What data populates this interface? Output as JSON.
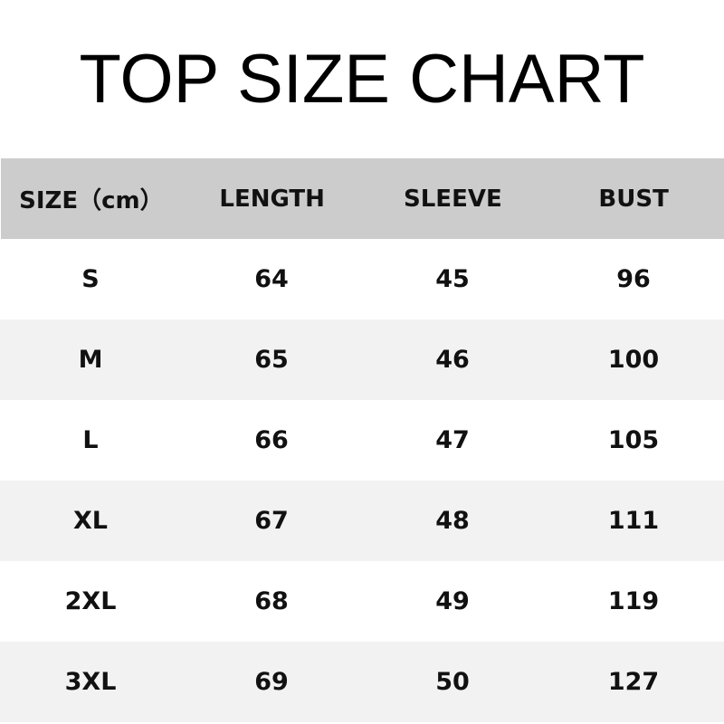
{
  "title": "TOP SIZE CHART",
  "table": {
    "headers": [
      "SIZE（cm）",
      "LENGTH",
      "SLEEVE",
      "BUST"
    ],
    "rows": [
      [
        "S",
        "64",
        "45",
        "96"
      ],
      [
        "M",
        "65",
        "46",
        "100"
      ],
      [
        "L",
        "66",
        "47",
        "105"
      ],
      [
        "XL",
        "67",
        "48",
        "111"
      ],
      [
        "2XL",
        "68",
        "49",
        "119"
      ],
      [
        "3XL",
        "69",
        "50",
        "127"
      ]
    ]
  },
  "colors": {
    "header_bg": "#cccccc",
    "alt_row_bg": "#f2f2f2"
  }
}
